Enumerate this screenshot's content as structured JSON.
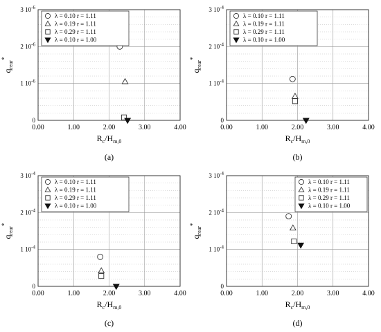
{
  "chart_data": [
    {
      "type": "scatter",
      "panel_label": "(a)",
      "xlabel": "R",
      "xlabel_sub": "c",
      "xlabel_rest": "/H",
      "xlabel_sub2": "m,0",
      "ylabel": "q",
      "ylabel_sub": "rear",
      "ylabel_sup": "*",
      "xlim": [
        0,
        4
      ],
      "ylim": [
        0,
        3
      ],
      "x_ticks": [
        0,
        1,
        2,
        3,
        4
      ],
      "x_tick_labels": [
        "0.00",
        "1.00",
        "2.00",
        "3.00",
        "4.00"
      ],
      "y_ticks": [
        0,
        1,
        2,
        3
      ],
      "y_tick_labels": [
        {
          "m": "0",
          "e": ""
        },
        {
          "m": "1 10",
          "e": "-6"
        },
        {
          "m": "2 10",
          "e": "-6"
        },
        {
          "m": "3 10",
          "e": "-6"
        }
      ],
      "grid": true,
      "legend": "top-left",
      "series": [
        {
          "name": "λ = 0.10 r = 1.11",
          "marker": "circle",
          "x": [
            2.3
          ],
          "y": [
            2.0
          ]
        },
        {
          "name": "λ = 0.19 r = 1.11",
          "marker": "triangle",
          "x": [
            2.45
          ],
          "y": [
            1.05
          ]
        },
        {
          "name": "λ = 0.29 r = 1.11",
          "marker": "square",
          "x": [
            2.42
          ],
          "y": [
            0.08
          ]
        },
        {
          "name": "λ = 0.10 r = 1.00",
          "marker": "triangle-down",
          "x": [
            2.52
          ],
          "y": [
            0.0
          ]
        }
      ]
    },
    {
      "type": "scatter",
      "panel_label": "(b)",
      "xlabel": "R",
      "xlabel_sub": "c",
      "xlabel_rest": "/H",
      "xlabel_sub2": "m,0",
      "ylabel": "q",
      "ylabel_sub": "rear",
      "ylabel_sup": "*",
      "xlim": [
        0,
        4
      ],
      "ylim": [
        0,
        3
      ],
      "x_ticks": [
        0,
        1,
        2,
        3,
        4
      ],
      "x_tick_labels": [
        "0.00",
        "1.00",
        "2.00",
        "3.00",
        "4.00"
      ],
      "y_ticks": [
        0,
        1,
        2,
        3
      ],
      "y_tick_labels": [
        {
          "m": "0",
          "e": ""
        },
        {
          "m": "1 10",
          "e": "-4"
        },
        {
          "m": "2 10",
          "e": "-4"
        },
        {
          "m": "3 10",
          "e": "-4"
        }
      ],
      "grid": true,
      "legend": "top-left",
      "series": [
        {
          "name": "λ = 0.10 r = 1.11",
          "marker": "circle",
          "x": [
            1.86
          ],
          "y": [
            1.12
          ]
        },
        {
          "name": "λ = 0.19 r = 1.11",
          "marker": "triangle",
          "x": [
            1.93
          ],
          "y": [
            0.65
          ]
        },
        {
          "name": "λ = 0.29 r = 1.11",
          "marker": "square",
          "x": [
            1.93
          ],
          "y": [
            0.52
          ]
        },
        {
          "name": "λ = 0.10 r = 1.00",
          "marker": "triangle-down",
          "x": [
            2.24
          ],
          "y": [
            0.0
          ]
        }
      ]
    },
    {
      "type": "scatter",
      "panel_label": "(c)",
      "xlabel": "R",
      "xlabel_sub": "c",
      "xlabel_rest": "/H",
      "xlabel_sub2": "m,0",
      "ylabel": "q",
      "ylabel_sub": "rear",
      "ylabel_sup": "*",
      "xlim": [
        0,
        4
      ],
      "ylim": [
        0,
        3
      ],
      "x_ticks": [
        0,
        1,
        2,
        3,
        4
      ],
      "x_tick_labels": [
        "0.00",
        "1.00",
        "2.00",
        "3.00",
        "4.00"
      ],
      "y_ticks": [
        0,
        1,
        2,
        3
      ],
      "y_tick_labels": [
        {
          "m": "0",
          "e": ""
        },
        {
          "m": "1 10",
          "e": "-4"
        },
        {
          "m": "2 10",
          "e": "-4"
        },
        {
          "m": "3 10",
          "e": "-4"
        }
      ],
      "grid": true,
      "legend": "top-left",
      "series": [
        {
          "name": "λ = 0.10 r = 1.11",
          "marker": "circle",
          "x": [
            1.75
          ],
          "y": [
            0.8
          ]
        },
        {
          "name": "λ = 0.19 r = 1.11",
          "marker": "triangle",
          "x": [
            1.78
          ],
          "y": [
            0.42
          ]
        },
        {
          "name": "λ = 0.29 r = 1.11",
          "marker": "square",
          "x": [
            1.78
          ],
          "y": [
            0.28
          ]
        },
        {
          "name": "λ = 0.10 r = 1.00",
          "marker": "triangle-down",
          "x": [
            2.2
          ],
          "y": [
            0.0
          ]
        }
      ]
    },
    {
      "type": "scatter",
      "panel_label": "(d)",
      "xlabel": "R",
      "xlabel_sub": "c",
      "xlabel_rest": "/H",
      "xlabel_sub2": "m,0",
      "ylabel": "q",
      "ylabel_sub": "rear",
      "ylabel_sup": "*",
      "xlim": [
        0,
        4
      ],
      "ylim": [
        0,
        3
      ],
      "x_ticks": [
        0,
        1,
        2,
        3,
        4
      ],
      "x_tick_labels": [
        "0.00",
        "1.00",
        "2.00",
        "3.00",
        "4.00"
      ],
      "y_ticks": [
        0,
        1,
        2,
        3
      ],
      "y_tick_labels": [
        {
          "m": "0",
          "e": ""
        },
        {
          "m": "1 10",
          "e": "-4"
        },
        {
          "m": "2 10",
          "e": "-4"
        },
        {
          "m": "3 10",
          "e": "-4"
        }
      ],
      "grid": true,
      "legend": "top-right",
      "series": [
        {
          "name": "λ = 0.10 r = 1.11",
          "marker": "circle",
          "x": [
            1.75
          ],
          "y": [
            1.9
          ]
        },
        {
          "name": "λ = 0.19 r = 1.11",
          "marker": "triangle",
          "x": [
            1.87
          ],
          "y": [
            1.58
          ]
        },
        {
          "name": "λ = 0.29 r = 1.11",
          "marker": "square",
          "x": [
            1.9
          ],
          "y": [
            1.22
          ]
        },
        {
          "name": "λ = 0.10 r = 1.00",
          "marker": "triangle-down",
          "x": [
            2.09
          ],
          "y": [
            1.12
          ]
        }
      ]
    }
  ]
}
